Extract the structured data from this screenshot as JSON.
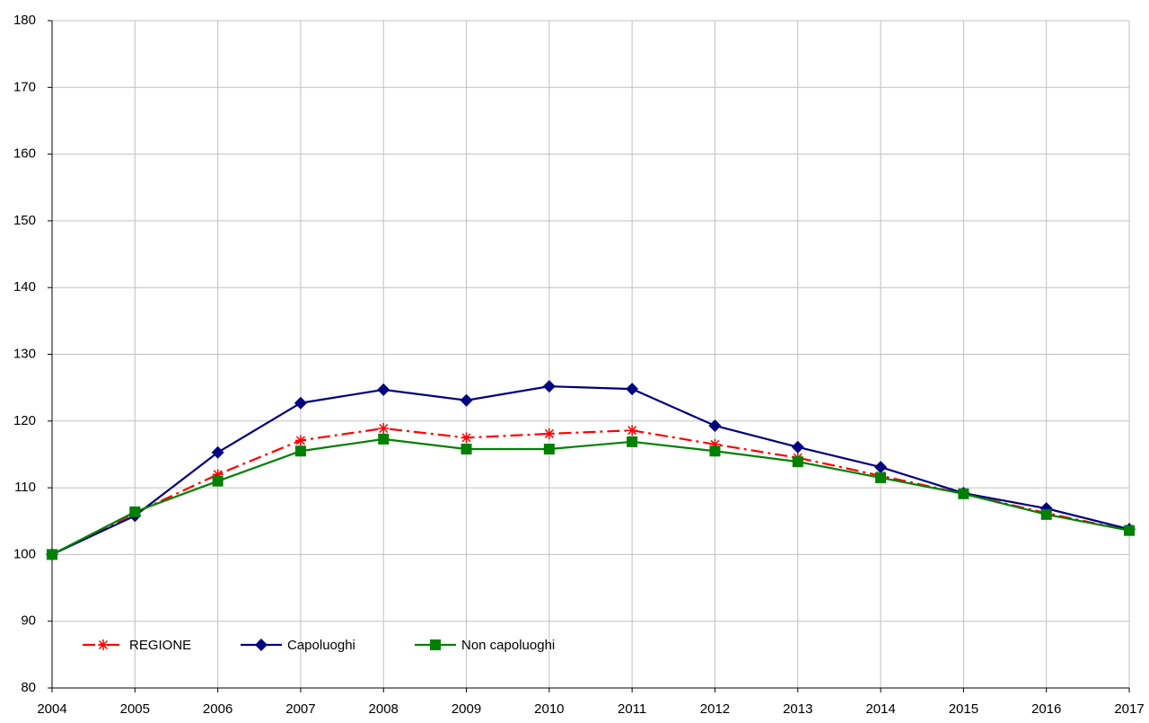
{
  "chart_data": {
    "type": "line",
    "x": [
      2004,
      2005,
      2006,
      2007,
      2008,
      2009,
      2010,
      2011,
      2012,
      2013,
      2014,
      2015,
      2016,
      2017
    ],
    "xlim": [
      2004,
      2017
    ],
    "xticks": [
      2004,
      2005,
      2006,
      2007,
      2008,
      2009,
      2010,
      2011,
      2012,
      2013,
      2014,
      2015,
      2016,
      2017
    ],
    "ylim": [
      80,
      180
    ],
    "yticks": [
      80,
      90,
      100,
      110,
      120,
      130,
      140,
      150,
      160,
      170,
      180
    ],
    "grid": true,
    "legend": "lower left",
    "series": [
      {
        "name": "REGIONE",
        "color": "#ff0000",
        "marker": "asterisk",
        "dash": "dashdot",
        "values": [
          100,
          106.2,
          112.0,
          117.1,
          118.9,
          117.5,
          118.1,
          118.6,
          116.5,
          114.5,
          111.8,
          109.1,
          106.2,
          103.6
        ]
      },
      {
        "name": "Capoluoghi",
        "color": "#000080",
        "marker": "diamond",
        "dash": "solid",
        "values": [
          100,
          105.8,
          115.3,
          122.7,
          124.7,
          123.1,
          125.2,
          124.8,
          119.3,
          116.1,
          113.1,
          109.2,
          106.9,
          103.8
        ]
      },
      {
        "name": "Non capoluoghi",
        "color": "#008000",
        "marker": "square",
        "dash": "solid",
        "values": [
          100,
          106.4,
          111.0,
          115.5,
          117.3,
          115.8,
          115.8,
          116.9,
          115.5,
          113.9,
          111.5,
          109.1,
          106.0,
          103.6
        ]
      }
    ]
  }
}
